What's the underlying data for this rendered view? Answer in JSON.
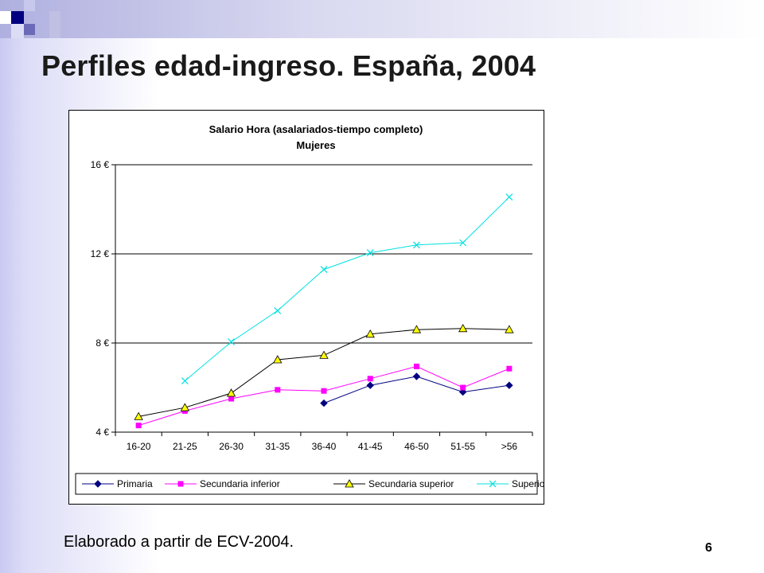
{
  "slide": {
    "title": "Perfiles edad-ingreso. España, 2004",
    "caption": "Elaborado a partir de ECV-2004.",
    "page_number": "6"
  },
  "colors": {
    "accent_dark": "#000080",
    "accent_mid": "#5a5aa8",
    "accent_light": "#a0a0d8"
  },
  "chart_data": {
    "type": "line",
    "title": "Salario Hora (asalariados-tiempo completo)",
    "subtitle": "Mujeres",
    "categories": [
      "16-20",
      "21-25",
      "26-30",
      "31-35",
      "36-40",
      "41-45",
      "46-50",
      "51-55",
      ">56"
    ],
    "ylim": [
      4,
      16
    ],
    "yticks": [
      4,
      8,
      12,
      16
    ],
    "ytick_labels": [
      "4 €",
      "8 €",
      "12 €",
      "16 €"
    ],
    "grid": "horizontal",
    "legend_position": "bottom",
    "series": [
      {
        "name": "Primaria",
        "color": "#000080",
        "marker": "diamond",
        "values": [
          null,
          null,
          null,
          null,
          5.3,
          6.1,
          6.5,
          5.8,
          6.1
        ]
      },
      {
        "name": "Secundaria inferior",
        "color": "#ff00ff",
        "marker": "square",
        "values": [
          4.3,
          4.95,
          5.5,
          5.9,
          5.85,
          6.4,
          6.95,
          6.0,
          6.85
        ]
      },
      {
        "name": "Secundaria superior",
        "color": "#000000",
        "marker_fill": "#ffff00",
        "marker": "triangle",
        "values": [
          4.7,
          5.1,
          5.75,
          7.25,
          7.45,
          8.4,
          8.6,
          8.65,
          8.6
        ]
      },
      {
        "name": "Superior",
        "color": "#00e0e0",
        "marker": "x",
        "values": [
          null,
          6.3,
          8.05,
          9.45,
          11.3,
          12.05,
          12.4,
          12.5,
          14.55
        ]
      }
    ]
  }
}
